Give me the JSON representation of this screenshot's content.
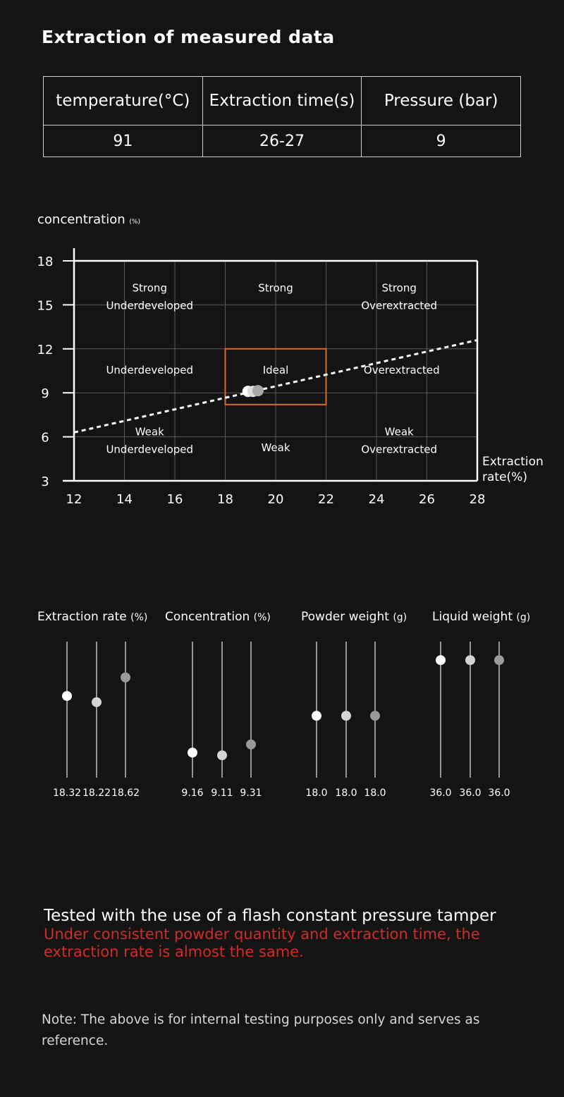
{
  "title": "Extraction of measured data",
  "table": {
    "headers": [
      "temperature(°C)",
      "Extraction time(s)",
      "Pressure (bar)"
    ],
    "values": [
      "91",
      "26-27",
      "9"
    ]
  },
  "chart_data": [
    {
      "type": "scatter",
      "ylabel": "concentration",
      "ylabel_unit": "(%)",
      "xlabel": "Extraction rate(%)",
      "x_ticks": [
        12,
        14,
        16,
        18,
        20,
        22,
        24,
        26,
        28
      ],
      "y_ticks": [
        3,
        6,
        9,
        12,
        15,
        18
      ],
      "xlim": [
        12,
        28
      ],
      "ylim": [
        3,
        18
      ],
      "grid": true,
      "zones": [
        {
          "lines": [
            "Strong",
            "Underdeveloped"
          ],
          "x": 15,
          "y": 15.6
        },
        {
          "lines": [
            "Strong"
          ],
          "x": 20,
          "y": 16.2
        },
        {
          "lines": [
            "Strong",
            "Overextracted"
          ],
          "x": 24.9,
          "y": 15.6
        },
        {
          "lines": [
            "Underdeveloped"
          ],
          "x": 15,
          "y": 10.6
        },
        {
          "lines": [
            "Ideal"
          ],
          "x": 20,
          "y": 10.6
        },
        {
          "lines": [
            "Overextracted"
          ],
          "x": 25,
          "y": 10.6
        },
        {
          "lines": [
            "Weak",
            "Underdeveloped"
          ],
          "x": 15,
          "y": 5.8
        },
        {
          "lines": [
            "Weak"
          ],
          "x": 20,
          "y": 5.3
        },
        {
          "lines": [
            "Weak",
            "Overextracted"
          ],
          "x": 24.9,
          "y": 5.8
        }
      ],
      "ideal_box": {
        "x": [
          18,
          22
        ],
        "y": [
          8.2,
          12
        ]
      },
      "trend_line": {
        "x": [
          12,
          28
        ],
        "y": [
          6.3,
          12.6
        ]
      },
      "points": [
        {
          "x": 18.9,
          "y": 9.1,
          "color": "#ffffff"
        },
        {
          "x": 19.1,
          "y": 9.1,
          "color": "#dcdcdc"
        },
        {
          "x": 19.3,
          "y": 9.15,
          "color": "#a8a8a8"
        }
      ]
    },
    {
      "type": "scatter",
      "title": "Extraction rate",
      "unit": "(%)",
      "values": [
        18.32,
        18.22,
        18.62
      ],
      "labels": [
        "18.32",
        "18.22",
        "18.62"
      ],
      "ylim": [
        17.0,
        19.2
      ]
    },
    {
      "type": "scatter",
      "title": "Concentration",
      "unit": "(%)",
      "values": [
        9.16,
        9.11,
        9.31
      ],
      "labels": [
        "9.16",
        "9.11",
        "9.31"
      ],
      "ylim": [
        8.7,
        11.2
      ]
    },
    {
      "type": "scatter",
      "title": "Powder weight",
      "unit": "(g)",
      "values": [
        18.0,
        18.0,
        18.0
      ],
      "labels": [
        "18.0",
        "18.0",
        "18.0"
      ],
      "ylim": [
        17.0,
        19.2
      ]
    },
    {
      "type": "scatter",
      "title": "Liquid weight",
      "unit": "(g)",
      "values": [
        36.0,
        36.0,
        36.0
      ],
      "labels": [
        "36.0",
        "36.0",
        "36.0"
      ],
      "ylim": [
        34.1,
        36.3
      ]
    }
  ],
  "point_colors": [
    "#ffffff",
    "#d4d4d4",
    "#9a9a9a"
  ],
  "ideal_color": "#d9692a",
  "footer": {
    "main": "Tested with the use of a flash constant pressure tamper",
    "red": "Under consistent powder quantity and extraction time, the extraction rate is almost the same."
  },
  "note": "Note: The above is for internal testing purposes only and serves as reference."
}
